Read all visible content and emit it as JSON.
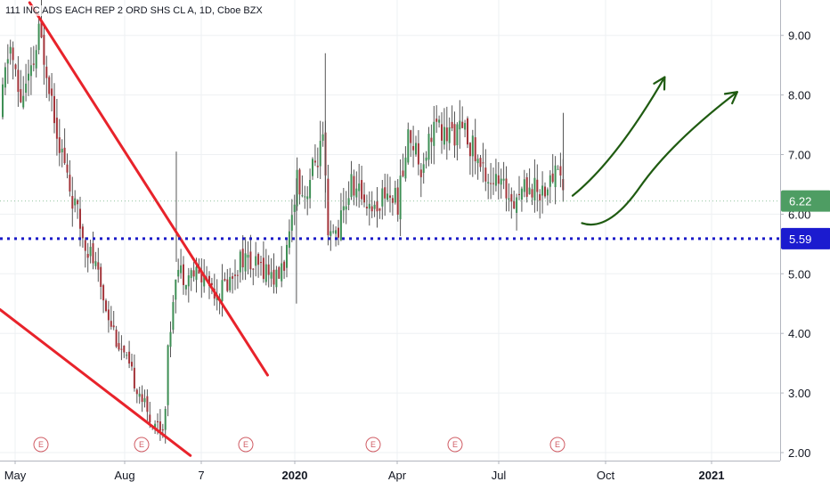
{
  "header": {
    "symbol_title": "111 INC ADS EACH REP 2 ORD SHS CL A, 1D, Cboe BZX"
  },
  "colors": {
    "up": "#3e8f55",
    "down": "#a3343a",
    "wick": "#555555",
    "trendline": "#e8232b",
    "support": "#1b1bc8",
    "arrow": "#1f5b11",
    "last_price_bg": "#4e9d63",
    "support_tag_bg": "#1b1bcf",
    "earnings": "#d05c64"
  },
  "last_price_label": "6.22",
  "support_label": "5.59",
  "earnings_marker_label": "E",
  "chart_data": {
    "type": "candlestick",
    "title": "111 INC ADS EACH REP 2 ORD SHS CL A, 1D, Cboe BZX",
    "y_ticks": [
      "2.00",
      "3.00",
      "4.00",
      "5.00",
      "6.00",
      "7.00",
      "8.00",
      "9.00"
    ],
    "x_ticks": [
      "May",
      "Aug",
      "7",
      "2020",
      "Apr",
      "Jul",
      "Oct",
      "2021"
    ],
    "x_ticks_bold": [
      "2020",
      "2021"
    ],
    "ylim": [
      1.95,
      9.55
    ],
    "last_price": 6.22,
    "support_level": 5.59,
    "grid": true,
    "earnings_markers": [
      0.05,
      0.18,
      0.31,
      0.47,
      0.57,
      0.71
    ],
    "price_path": [
      [
        0.0,
        7.6
      ],
      [
        0.012,
        8.9
      ],
      [
        0.025,
        7.9
      ],
      [
        0.04,
        8.3
      ],
      [
        0.05,
        9.0
      ],
      [
        0.06,
        8.5
      ],
      [
        0.075,
        7.3
      ],
      [
        0.09,
        6.4
      ],
      [
        0.105,
        5.7
      ],
      [
        0.12,
        5.2
      ],
      [
        0.135,
        4.5
      ],
      [
        0.15,
        3.9
      ],
      [
        0.165,
        3.4
      ],
      [
        0.18,
        3.0
      ],
      [
        0.19,
        2.6
      ],
      [
        0.2,
        2.5
      ],
      [
        0.21,
        2.4
      ],
      [
        0.215,
        3.6
      ],
      [
        0.225,
        5.1
      ],
      [
        0.235,
        5.0
      ],
      [
        0.25,
        5.0
      ],
      [
        0.265,
        4.9
      ],
      [
        0.28,
        4.7
      ],
      [
        0.295,
        4.9
      ],
      [
        0.31,
        5.3
      ],
      [
        0.325,
        5.1
      ],
      [
        0.34,
        5.1
      ],
      [
        0.355,
        4.9
      ],
      [
        0.37,
        5.4
      ],
      [
        0.38,
        6.7
      ],
      [
        0.39,
        6.3
      ],
      [
        0.405,
        6.9
      ],
      [
        0.415,
        7.2
      ],
      [
        0.42,
        5.5
      ],
      [
        0.435,
        5.8
      ],
      [
        0.45,
        6.5
      ],
      [
        0.465,
        6.3
      ],
      [
        0.48,
        6.1
      ],
      [
        0.495,
        6.4
      ],
      [
        0.51,
        6.2
      ],
      [
        0.525,
        7.4
      ],
      [
        0.54,
        6.8
      ],
      [
        0.555,
        7.5
      ],
      [
        0.57,
        7.3
      ],
      [
        0.585,
        7.4
      ],
      [
        0.6,
        7.3
      ],
      [
        0.615,
        6.8
      ],
      [
        0.63,
        6.6
      ],
      [
        0.645,
        6.4
      ],
      [
        0.66,
        6.3
      ],
      [
        0.675,
        6.5
      ],
      [
        0.69,
        6.4
      ],
      [
        0.705,
        6.5
      ],
      [
        0.715,
        6.9
      ],
      [
        0.725,
        6.2
      ]
    ],
    "trendlines": [
      {
        "from": [
          0.038,
          9.55
        ],
        "to": [
          0.343,
          3.3
        ]
      },
      {
        "from": [
          0.0,
          4.4
        ],
        "to": [
          0.244,
          1.95
        ]
      }
    ],
    "projection_arrows": [
      {
        "points": [
          [
            0.734,
            6.31
          ],
          [
            0.79,
            6.9
          ],
          [
            0.852,
            8.3
          ]
        ]
      },
      {
        "points": [
          [
            0.746,
            5.85
          ],
          [
            0.78,
            5.7
          ],
          [
            0.86,
            7.2
          ],
          [
            0.945,
            8.05
          ]
        ]
      }
    ]
  }
}
